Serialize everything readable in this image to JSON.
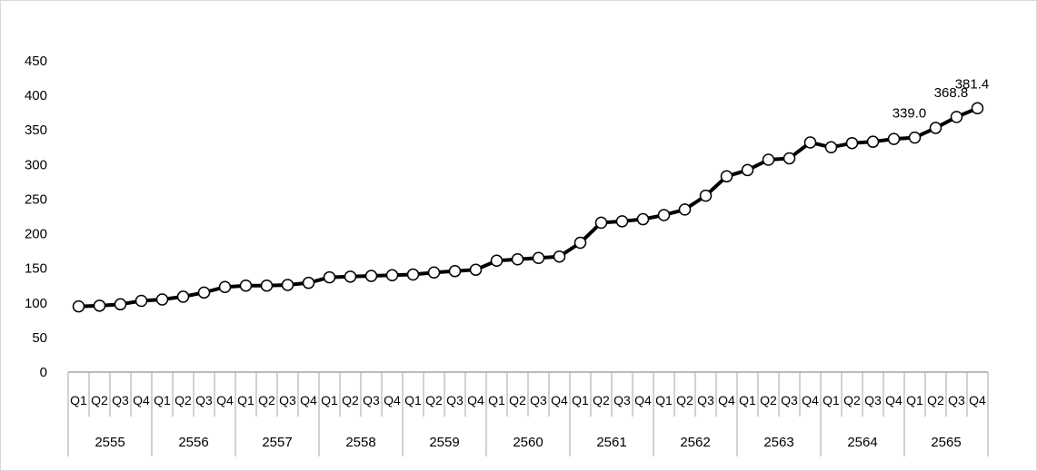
{
  "chart_data": {
    "type": "line",
    "title": "",
    "xlabel": "",
    "ylabel": "",
    "ylim": [
      0,
      450
    ],
    "yticks": [
      0,
      50,
      100,
      150,
      200,
      250,
      300,
      350,
      400,
      450
    ],
    "grid": false,
    "legend": "none",
    "years": [
      "2555",
      "2556",
      "2557",
      "2558",
      "2559",
      "2560",
      "2561",
      "2562",
      "2563",
      "2564",
      "2565"
    ],
    "quarters": [
      "Q1",
      "Q2",
      "Q3",
      "Q4"
    ],
    "series": [
      {
        "values": [
          95,
          96,
          98,
          103,
          105,
          109,
          115,
          123,
          125,
          125,
          126,
          129,
          137,
          138,
          139,
          140,
          141,
          144,
          146,
          148,
          161,
          163,
          165,
          167,
          187,
          216,
          218,
          221,
          227,
          235,
          255,
          283,
          292,
          307,
          309,
          332,
          325,
          331,
          333,
          337,
          339.0,
          353,
          368.8,
          381.4
        ]
      }
    ],
    "data_labels": [
      {
        "index": 40,
        "text": "339.0"
      },
      {
        "index": 42,
        "text": "368.8"
      },
      {
        "index": 43,
        "text": "381.4"
      }
    ],
    "colors": {
      "line": "#000000",
      "marker_fill": "#ffffff",
      "axis": "#a6a6a6"
    }
  }
}
